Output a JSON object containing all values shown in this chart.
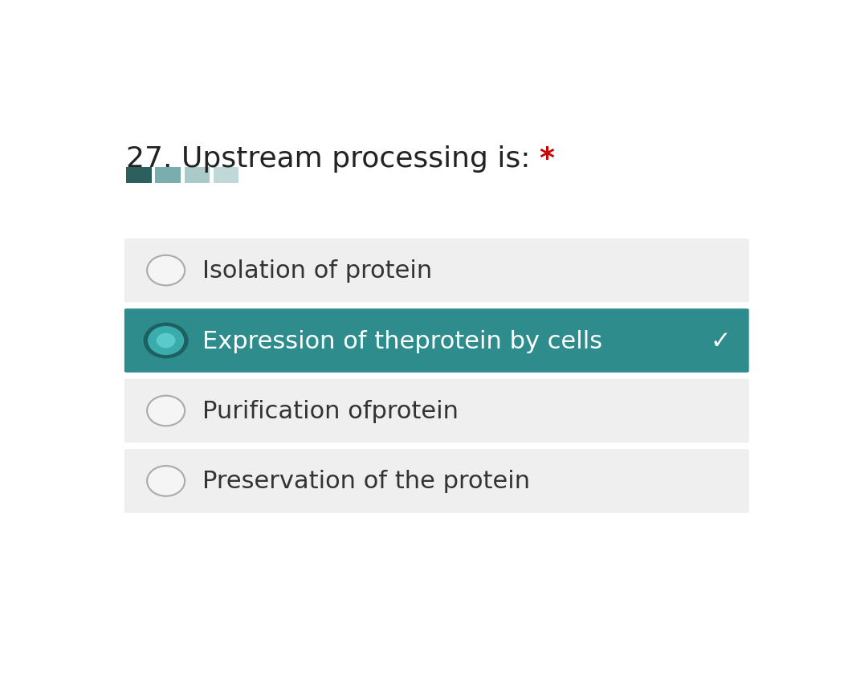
{
  "title": "27. Upstream processing is: *",
  "title_main": "27. Upstream processing is: ",
  "title_asterisk": "*",
  "asterisk_color": "#cc0000",
  "title_color": "#222222",
  "title_fontsize": 26,
  "background_color": "#ffffff",
  "options": [
    {
      "text": "Isolation of protein",
      "selected": false,
      "bg_color": "#efefef",
      "text_color": "#333333"
    },
    {
      "text": "Expression of theprotein by cells",
      "selected": true,
      "bg_color": "#2e8c8c",
      "text_color": "#ffffff",
      "checkmark": "✓"
    },
    {
      "text": "Purification ofprotein",
      "selected": false,
      "bg_color": "#efefef",
      "text_color": "#333333"
    },
    {
      "text": "Preservation of the protein",
      "selected": false,
      "bg_color": "#efefef",
      "text_color": "#333333"
    }
  ],
  "swatch_colors": [
    "#2d5f5f",
    "#7aadad",
    "#aacaca",
    "#c0d8d8"
  ],
  "option_fontsize": 22,
  "radio_unselected_face": "#f5f5f5",
  "radio_unselected_edge": "#aaaaaa",
  "radio_selected_dark": "#1e6060",
  "radio_selected_mid": "#3aacac",
  "radio_selected_dot": "#5acaca"
}
